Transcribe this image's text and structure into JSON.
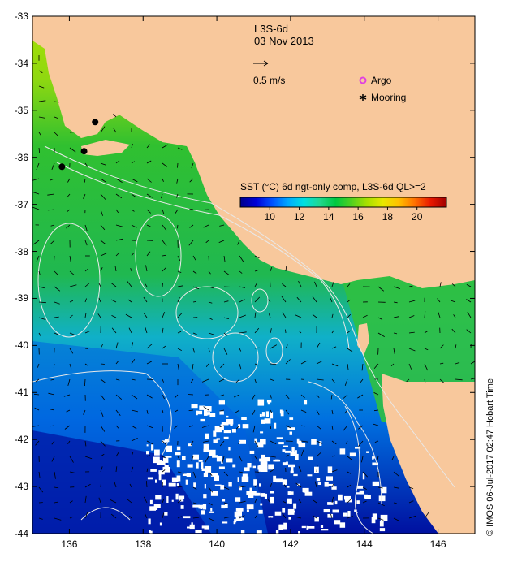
{
  "title": {
    "product": "L3S-6d",
    "date": "03 Nov 2013"
  },
  "legend": {
    "vector_scale_label": "0.5 m/s",
    "argo_label": "Argo",
    "mooring_label": "Mooring",
    "argo_color": "#e040e0",
    "mooring_color": "#000000"
  },
  "colorbar": {
    "title": "SST (°C) 6d ngt-only comp, L3S-6d QL>=2",
    "min": 8,
    "max": 22,
    "ticks": [
      "10",
      "12",
      "14",
      "16",
      "18",
      "20"
    ],
    "tick_values": [
      10,
      12,
      14,
      16,
      18,
      20
    ],
    "colors": [
      "#00008c",
      "#0000d8",
      "#0050ff",
      "#00a8ff",
      "#00e0e0",
      "#20d890",
      "#00c840",
      "#50d020",
      "#a8e000",
      "#e8e800",
      "#ffc000",
      "#ff7000",
      "#e81800",
      "#a00000"
    ]
  },
  "axes": {
    "lon_ticks": [
      "136",
      "138",
      "140",
      "142",
      "144",
      "146"
    ],
    "lon_values": [
      136,
      138,
      140,
      142,
      144,
      146
    ],
    "lat_ticks": [
      "-33",
      "-34",
      "-35",
      "-36",
      "-37",
      "-38",
      "-39",
      "-40",
      "-41",
      "-42",
      "-43",
      "-44"
    ],
    "lat_values": [
      -33,
      -34,
      -35,
      -36,
      -37,
      -38,
      -39,
      -40,
      -41,
      -42,
      -43,
      -44
    ],
    "lon_range": [
      135,
      147
    ],
    "lat_range": [
      -44,
      -33
    ]
  },
  "moorings": [
    {
      "lon": 136.7,
      "lat": -35.25
    },
    {
      "lon": 136.4,
      "lat": -35.87
    },
    {
      "lon": 135.8,
      "lat": -36.2
    }
  ],
  "colors": {
    "land": "#f8c89c",
    "cloud": "#ffffff",
    "contour": "#e8e8e8"
  },
  "credit": "© IMOS 06-Jul-2017 02:47 Hobart Time"
}
